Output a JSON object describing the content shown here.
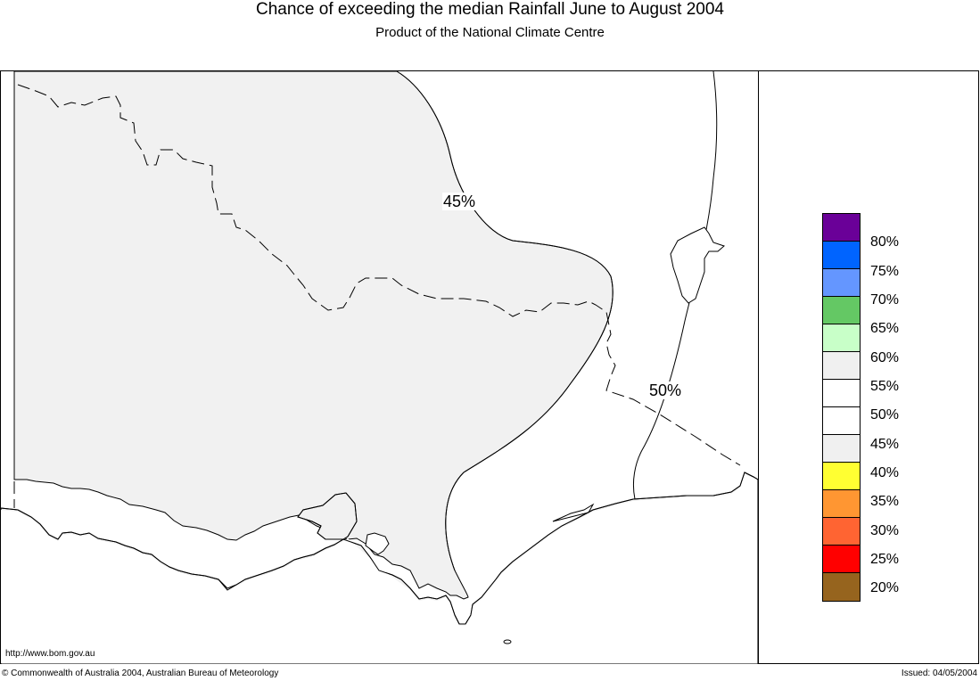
{
  "header": {
    "title": "Chance of exceeding the median Rainfall June to August 2004",
    "subtitle": "Product of the National Climate Centre"
  },
  "map": {
    "contour_labels": [
      "45%",
      "50%"
    ],
    "region": "Victoria and southern New South Wales, Australia"
  },
  "legend": {
    "items": [
      {
        "label": "",
        "color": "#6a0098"
      },
      {
        "label": "80%",
        "color": "#0064ff"
      },
      {
        "label": "75%",
        "color": "#6496ff"
      },
      {
        "label": "70%",
        "color": "#64c864"
      },
      {
        "label": "65%",
        "color": "#c8ffc8"
      },
      {
        "label": "60%",
        "color": "#f0f0f0"
      },
      {
        "label": "55%",
        "color": "#ffffff"
      },
      {
        "label": "50%",
        "color": "#ffffff"
      },
      {
        "label": "45%",
        "color": "#f0f0f0"
      },
      {
        "label": "40%",
        "color": "#ffff32"
      },
      {
        "label": "35%",
        "color": "#ff9632"
      },
      {
        "label": "30%",
        "color": "#ff6432"
      },
      {
        "label": "25%",
        "color": "#ff0000"
      },
      {
        "label": "20%",
        "color": "#96641e"
      }
    ]
  },
  "footer": {
    "url": "http://www.bom.gov.au",
    "copyright": "© Commonwealth of Australia 2004, Australian Bureau of Meteorology",
    "issued": "Issued: 04/05/2004"
  }
}
